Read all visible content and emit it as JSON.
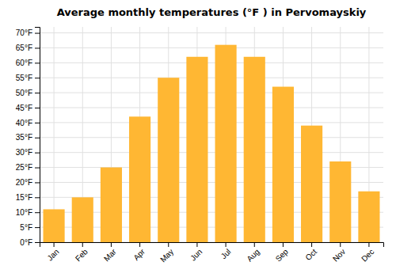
{
  "chart_data": {
    "type": "bar",
    "title": "Average monthly temperatures (°F ) in Pervomayskiy",
    "categories": [
      "Jan",
      "Feb",
      "Mar",
      "Apr",
      "May",
      "Jun",
      "Jul",
      "Aug",
      "Sep",
      "Oct",
      "Nov",
      "Dec"
    ],
    "values": [
      11,
      15,
      25,
      42,
      55,
      62,
      66,
      62,
      52,
      39,
      27,
      17
    ],
    "color": "#FFB733",
    "ylim": [
      0,
      72
    ],
    "yticks": [
      {
        "value": 0,
        "label": "0°F"
      },
      {
        "value": 5,
        "label": "5°F"
      },
      {
        "value": 10,
        "label": "10°F"
      },
      {
        "value": 15,
        "label": "15°F"
      },
      {
        "value": 20,
        "label": "20°F"
      },
      {
        "value": 25,
        "label": "25°F"
      },
      {
        "value": 30,
        "label": "30°F"
      },
      {
        "value": 35,
        "label": "35°F"
      },
      {
        "value": 40,
        "label": "40°F"
      },
      {
        "value": 45,
        "label": "45°F"
      },
      {
        "value": 50,
        "label": "50°F"
      },
      {
        "value": 55,
        "label": "55°F"
      },
      {
        "value": 60,
        "label": "60°F"
      },
      {
        "value": 65,
        "label": "65°F"
      },
      {
        "value": 70,
        "label": "70°F"
      }
    ],
    "grid": true
  }
}
